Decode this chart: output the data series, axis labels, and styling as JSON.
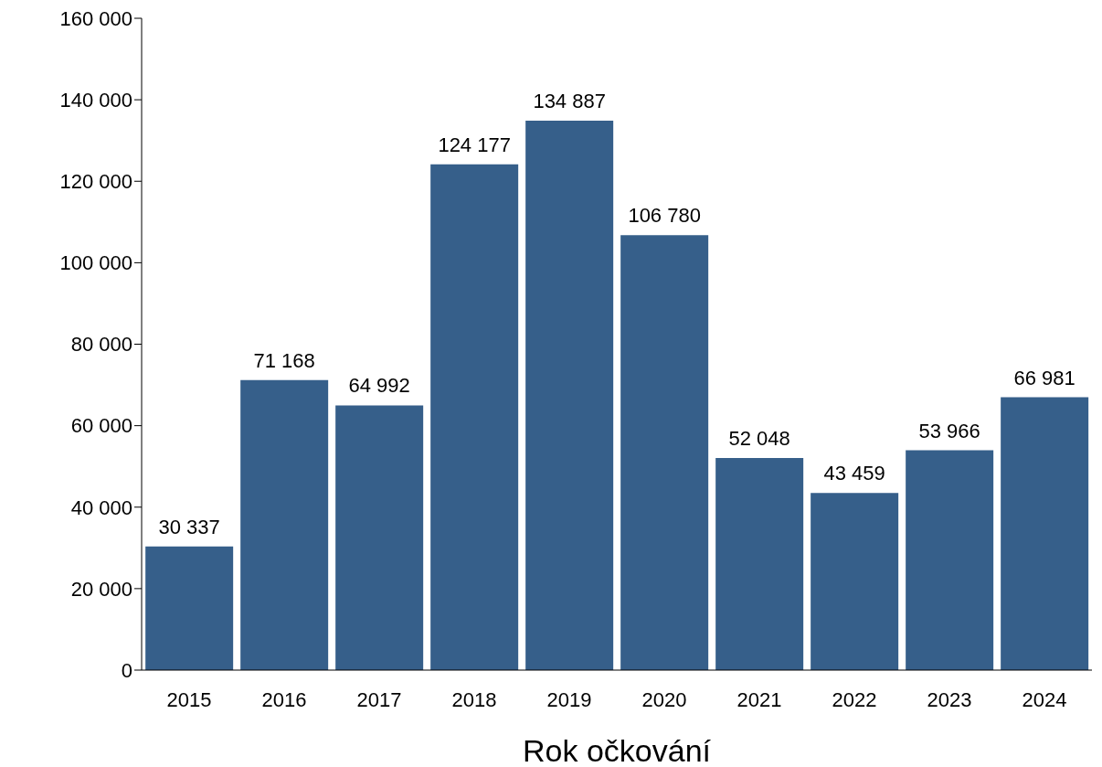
{
  "chart_data": {
    "type": "bar",
    "xlabel": "Rok očkování",
    "categories": [
      "2015",
      "2016",
      "2017",
      "2018",
      "2019",
      "2020",
      "2021",
      "2022",
      "2023",
      "2024"
    ],
    "values": [
      30337,
      71168,
      64992,
      124177,
      134887,
      106780,
      52048,
      43459,
      53966,
      66981
    ],
    "value_labels": [
      "30 337",
      "71 168",
      "64 992",
      "124 177",
      "134 887",
      "106 780",
      "52 048",
      "43 459",
      "53 966",
      "66 981"
    ],
    "color": "#365f8a",
    "ylim": [
      0,
      160000
    ],
    "yticks": [
      {
        "value": 0,
        "label": "0"
      },
      {
        "value": 20000,
        "label": "20 000"
      },
      {
        "value": 40000,
        "label": "40 000"
      },
      {
        "value": 60000,
        "label": "60 000"
      },
      {
        "value": 80000,
        "label": "80 000"
      },
      {
        "value": 100000,
        "label": "100 000"
      },
      {
        "value": 120000,
        "label": "120 000"
      },
      {
        "value": 140000,
        "label": "140 000"
      },
      {
        "value": 160000,
        "label": "160 000"
      }
    ],
    "grid": false,
    "legend": false
  }
}
